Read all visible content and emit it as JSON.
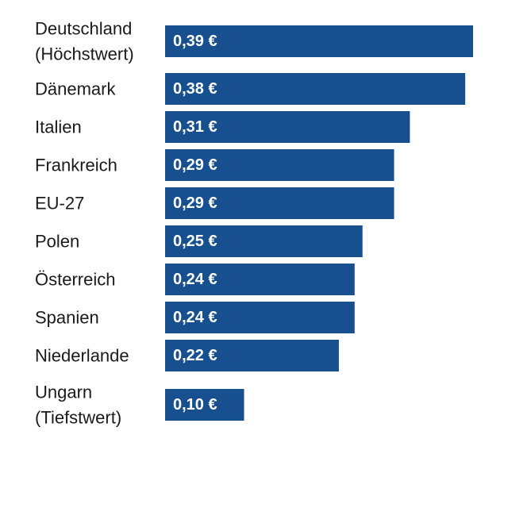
{
  "chart_data": {
    "type": "bar",
    "orientation": "horizontal",
    "categories": [
      [
        "Deutschland",
        "(Höchstwert)"
      ],
      [
        "Dänemark"
      ],
      [
        "Italien"
      ],
      [
        "Frankreich"
      ],
      [
        "EU-27"
      ],
      [
        "Polen"
      ],
      [
        "Österreich"
      ],
      [
        "Spanien"
      ],
      [
        "Niederlande"
      ],
      [
        "Ungarn",
        "(Tiefstwert)"
      ]
    ],
    "values": [
      0.39,
      0.38,
      0.31,
      0.29,
      0.29,
      0.25,
      0.24,
      0.24,
      0.22,
      0.1
    ],
    "value_labels": [
      "0,39 €",
      "0,38 €",
      "0,31 €",
      "0,29 €",
      "0,29 €",
      "0,25 €",
      "0,24 €",
      "0,24 €",
      "0,22 €",
      "0,10 €"
    ],
    "title": "",
    "xlabel": "",
    "ylabel": "",
    "grid": false,
    "bar_color": "#174f8f",
    "label_color": "#ffffff"
  }
}
